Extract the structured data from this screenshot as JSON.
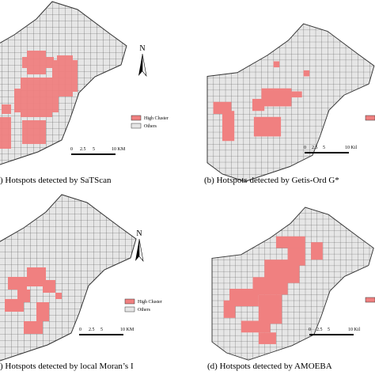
{
  "panels": [
    {
      "caption": ") Hotspots detected by SaTScan",
      "north": "N",
      "legend": [
        "High Cluster",
        "Others"
      ],
      "scale": [
        "0",
        "2.5",
        "5",
        "10 KM"
      ]
    },
    {
      "caption": "(b) Hotspots detected by Getis-Ord G*",
      "scale": [
        "0",
        "2.5",
        "5",
        "10 Kil"
      ]
    },
    {
      "caption": ") Hotspots detected by local Moran’s I",
      "north": "N",
      "legend": [
        "High Cluster",
        "Others"
      ],
      "scale": [
        "0",
        "2.5",
        "5",
        "10 KM"
      ]
    },
    {
      "caption": "(d) Hotspots detected by AMOEBA",
      "scale": [
        "0",
        "2.5",
        "5",
        "10 Kil"
      ]
    }
  ]
}
